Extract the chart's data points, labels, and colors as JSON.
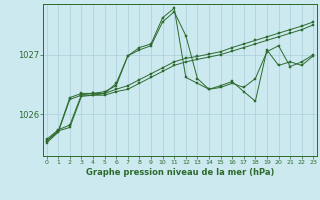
{
  "xlabel": "Graphe pression niveau de la mer (hPa)",
  "bg_color": "#cce9f0",
  "grid_color": "#aacfda",
  "line_color": "#2d6a2d",
  "x_ticks": [
    0,
    1,
    2,
    3,
    4,
    5,
    6,
    7,
    8,
    9,
    10,
    11,
    12,
    13,
    14,
    15,
    16,
    17,
    18,
    19,
    20,
    21,
    22,
    23
  ],
  "y_ticks": [
    1026,
    1027
  ],
  "ylim": [
    1025.3,
    1027.85
  ],
  "xlim": [
    -0.3,
    23.3
  ],
  "series": [
    [
      1025.55,
      1025.72,
      1025.78,
      1026.3,
      1026.32,
      1026.32,
      1026.38,
      1026.42,
      1026.52,
      1026.62,
      1026.72,
      1026.82,
      1026.88,
      1026.92,
      1026.96,
      1027.0,
      1027.06,
      1027.12,
      1027.18,
      1027.24,
      1027.3,
      1027.36,
      1027.42,
      1027.5
    ],
    [
      1025.58,
      1025.74,
      1025.82,
      1026.33,
      1026.35,
      1026.35,
      1026.42,
      1026.48,
      1026.58,
      1026.68,
      1026.78,
      1026.88,
      1026.94,
      1026.97,
      1027.01,
      1027.05,
      1027.12,
      1027.18,
      1027.24,
      1027.3,
      1027.36,
      1027.42,
      1027.48,
      1027.55
    ],
    [
      1025.55,
      1025.72,
      1026.28,
      1026.35,
      1026.35,
      1026.38,
      1026.48,
      1026.98,
      1027.08,
      1027.15,
      1027.55,
      1027.72,
      1027.32,
      1026.6,
      1026.42,
      1026.45,
      1026.52,
      1026.45,
      1026.6,
      1027.05,
      1027.15,
      1026.8,
      1026.88,
      1027.0
    ],
    [
      1025.52,
      1025.7,
      1026.25,
      1026.32,
      1026.32,
      1026.35,
      1026.52,
      1026.98,
      1027.12,
      1027.18,
      1027.62,
      1027.78,
      1026.62,
      1026.52,
      1026.42,
      1026.48,
      1026.55,
      1026.38,
      1026.22,
      1027.08,
      1026.82,
      1026.88,
      1026.82,
      1026.98
    ]
  ]
}
